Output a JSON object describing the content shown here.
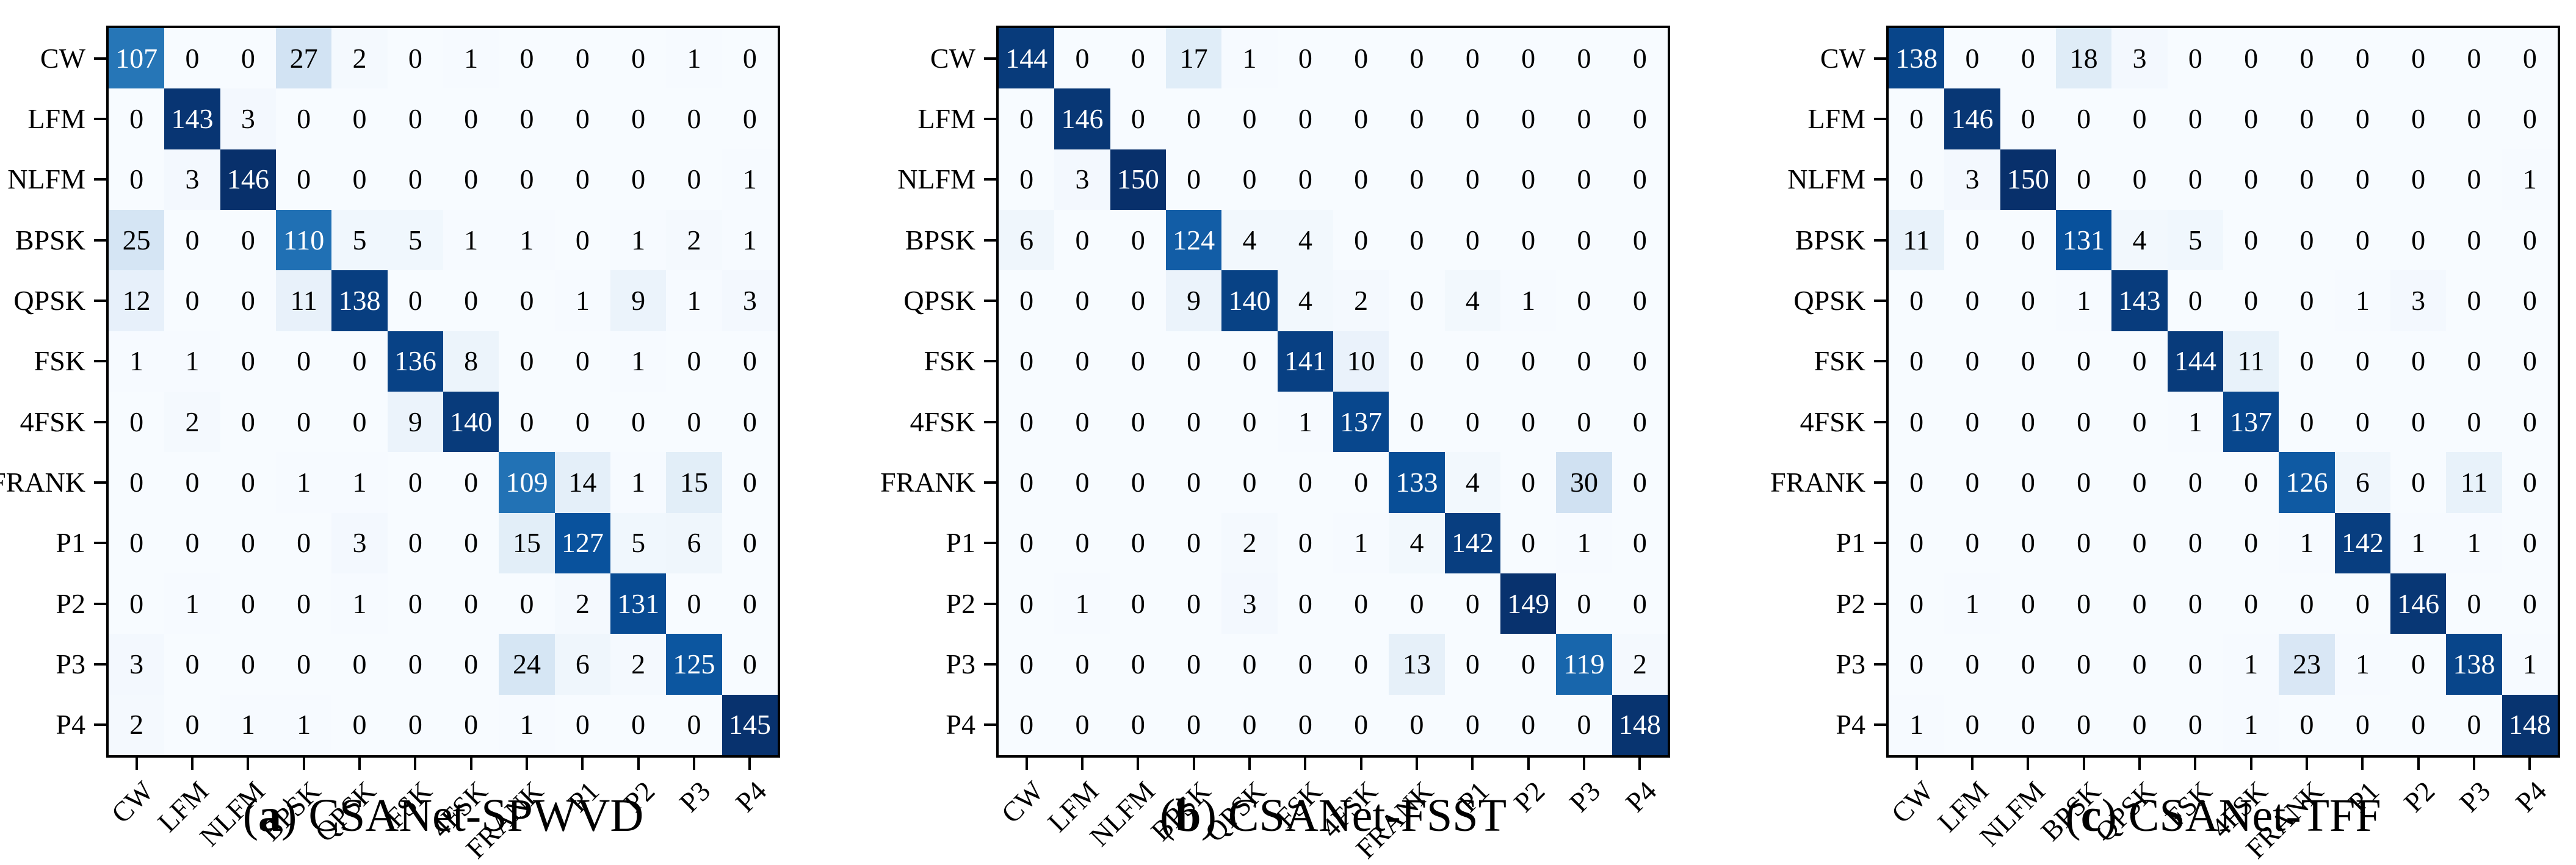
{
  "colors": {
    "background": "#ffffff",
    "frame": "#000000",
    "colormap": "Blues",
    "cmap_low": "#f7fbff",
    "cmap_high": "#08306b",
    "cell_text_dark": "#000000",
    "cell_text_light": "#ffffff"
  },
  "chart_data": [
    {
      "type": "heatmap",
      "title": "(a) CSANet-SPWVD",
      "caption_open": "(",
      "caption_letter": "a",
      "caption_close": ")",
      "caption_text": "CSANet-SPWVD",
      "colormap": "Blues",
      "grid": false,
      "legend": "none",
      "x_ticklabels": [
        "CW",
        "LFM",
        "NLFM",
        "BPSK",
        "QPSK",
        "FSK",
        "4FSK",
        "FRANK",
        "P1",
        "P2",
        "P3",
        "P4"
      ],
      "y_ticklabels": [
        "CW",
        "LFM",
        "NLFM",
        "BPSK",
        "QPSK",
        "FSK",
        "4FSK",
        "FRANK",
        "P1",
        "P2",
        "P3",
        "P4"
      ],
      "matrix": [
        [
          107,
          0,
          0,
          27,
          2,
          0,
          1,
          0,
          0,
          0,
          1,
          0
        ],
        [
          0,
          143,
          3,
          0,
          0,
          0,
          0,
          0,
          0,
          0,
          0,
          0
        ],
        [
          0,
          3,
          146,
          0,
          0,
          0,
          0,
          0,
          0,
          0,
          0,
          1
        ],
        [
          25,
          0,
          0,
          110,
          5,
          5,
          1,
          1,
          0,
          1,
          2,
          1
        ],
        [
          12,
          0,
          0,
          11,
          138,
          0,
          0,
          0,
          1,
          9,
          1,
          3
        ],
        [
          1,
          1,
          0,
          0,
          0,
          136,
          8,
          0,
          0,
          1,
          0,
          0
        ],
        [
          0,
          2,
          0,
          0,
          0,
          9,
          140,
          0,
          0,
          0,
          0,
          0
        ],
        [
          0,
          0,
          0,
          1,
          1,
          0,
          0,
          109,
          14,
          1,
          15,
          0
        ],
        [
          0,
          0,
          0,
          0,
          3,
          0,
          0,
          15,
          127,
          5,
          6,
          0
        ],
        [
          0,
          1,
          0,
          0,
          1,
          0,
          0,
          0,
          2,
          131,
          0,
          0
        ],
        [
          3,
          0,
          0,
          0,
          0,
          0,
          0,
          24,
          6,
          2,
          125,
          0
        ],
        [
          2,
          0,
          1,
          1,
          0,
          0,
          0,
          1,
          0,
          0,
          0,
          145
        ]
      ]
    },
    {
      "type": "heatmap",
      "title": "(b) CSANet-FSST",
      "caption_open": "(",
      "caption_letter": "b",
      "caption_close": ")",
      "caption_text": "CSANet-FSST",
      "colormap": "Blues",
      "grid": false,
      "legend": "none",
      "x_ticklabels": [
        "CW",
        "LFM",
        "NLFM",
        "BPSK",
        "QPSK",
        "FSK",
        "4FSK",
        "FRANK",
        "P1",
        "P2",
        "P3",
        "P4"
      ],
      "y_ticklabels": [
        "CW",
        "LFM",
        "NLFM",
        "BPSK",
        "QPSK",
        "FSK",
        "4FSK",
        "FRANK",
        "P1",
        "P2",
        "P3",
        "P4"
      ],
      "matrix": [
        [
          144,
          0,
          0,
          17,
          1,
          0,
          0,
          0,
          0,
          0,
          0,
          0
        ],
        [
          0,
          146,
          0,
          0,
          0,
          0,
          0,
          0,
          0,
          0,
          0,
          0
        ],
        [
          0,
          3,
          150,
          0,
          0,
          0,
          0,
          0,
          0,
          0,
          0,
          0
        ],
        [
          6,
          0,
          0,
          124,
          4,
          4,
          0,
          0,
          0,
          0,
          0,
          0
        ],
        [
          0,
          0,
          0,
          9,
          140,
          4,
          2,
          0,
          4,
          1,
          0,
          0
        ],
        [
          0,
          0,
          0,
          0,
          0,
          141,
          10,
          0,
          0,
          0,
          0,
          0
        ],
        [
          0,
          0,
          0,
          0,
          0,
          1,
          137,
          0,
          0,
          0,
          0,
          0
        ],
        [
          0,
          0,
          0,
          0,
          0,
          0,
          0,
          133,
          4,
          0,
          30,
          0
        ],
        [
          0,
          0,
          0,
          0,
          2,
          0,
          1,
          4,
          142,
          0,
          1,
          0
        ],
        [
          0,
          1,
          0,
          0,
          3,
          0,
          0,
          0,
          0,
          149,
          0,
          0
        ],
        [
          0,
          0,
          0,
          0,
          0,
          0,
          0,
          13,
          0,
          0,
          119,
          2
        ],
        [
          0,
          0,
          0,
          0,
          0,
          0,
          0,
          0,
          0,
          0,
          0,
          148
        ]
      ]
    },
    {
      "type": "heatmap",
      "title": "(c) CSANet-TFF",
      "caption_open": "(",
      "caption_letter": "c",
      "caption_close": ")",
      "caption_text": "CSANet-TFF",
      "colormap": "Blues",
      "grid": false,
      "legend": "none",
      "x_ticklabels": [
        "CW",
        "LFM",
        "NLFM",
        "BPSK",
        "QPSK",
        "FSK",
        "4FSK",
        "FRANK",
        "P1",
        "P2",
        "P3",
        "P4"
      ],
      "y_ticklabels": [
        "CW",
        "LFM",
        "NLFM",
        "BPSK",
        "QPSK",
        "FSK",
        "4FSK",
        "FRANK",
        "P1",
        "P2",
        "P3",
        "P4"
      ],
      "matrix": [
        [
          138,
          0,
          0,
          18,
          3,
          0,
          0,
          0,
          0,
          0,
          0,
          0
        ],
        [
          0,
          146,
          0,
          0,
          0,
          0,
          0,
          0,
          0,
          0,
          0,
          0
        ],
        [
          0,
          3,
          150,
          0,
          0,
          0,
          0,
          0,
          0,
          0,
          0,
          1
        ],
        [
          11,
          0,
          0,
          131,
          4,
          5,
          0,
          0,
          0,
          0,
          0,
          0
        ],
        [
          0,
          0,
          0,
          1,
          143,
          0,
          0,
          0,
          1,
          3,
          0,
          0
        ],
        [
          0,
          0,
          0,
          0,
          0,
          144,
          11,
          0,
          0,
          0,
          0,
          0
        ],
        [
          0,
          0,
          0,
          0,
          0,
          1,
          137,
          0,
          0,
          0,
          0,
          0
        ],
        [
          0,
          0,
          0,
          0,
          0,
          0,
          0,
          126,
          6,
          0,
          11,
          0
        ],
        [
          0,
          0,
          0,
          0,
          0,
          0,
          0,
          1,
          142,
          1,
          1,
          0
        ],
        [
          0,
          1,
          0,
          0,
          0,
          0,
          0,
          0,
          0,
          146,
          0,
          0
        ],
        [
          0,
          0,
          0,
          0,
          0,
          0,
          1,
          23,
          1,
          0,
          138,
          1
        ],
        [
          1,
          0,
          0,
          0,
          0,
          0,
          1,
          0,
          0,
          0,
          0,
          148
        ]
      ]
    }
  ],
  "layout": {
    "panel_lefts": [
      174,
      1632,
      3090
    ]
  }
}
